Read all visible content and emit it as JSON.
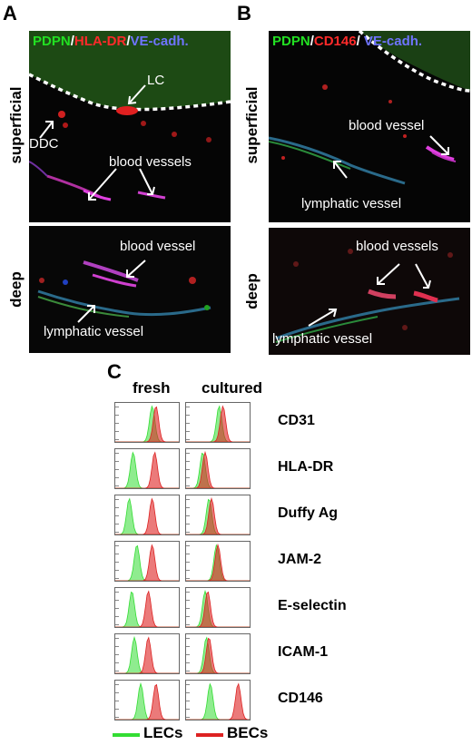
{
  "panels": {
    "A": {
      "letter": "A",
      "title": {
        "part1": "PDPN",
        "sep1": "/",
        "part2": "HLA-DR",
        "sep2": "/",
        "part3": "VE-cadh."
      },
      "superficial": {
        "label": "superficial",
        "lc": "LC",
        "ddc": "DDC",
        "blood_vessels": "blood vessels"
      },
      "deep": {
        "label": "deep",
        "blood_vessel": "blood vessel",
        "lymphatic_vessel": "lymphatic vessel"
      }
    },
    "B": {
      "letter": "B",
      "title": {
        "part1": "PDPN",
        "sep1": "/",
        "part2": "CD146",
        "sep2": "/ ",
        "part3": "VE-cadh."
      },
      "superficial": {
        "label": "superficial",
        "blood_vessel": "blood vessel",
        "lymphatic_vessel": "lymphatic vessel"
      },
      "deep": {
        "label": "deep",
        "blood_vessels": "blood vessels",
        "lymphatic_vessel": "lymphatic vessel"
      }
    },
    "C": {
      "letter": "C",
      "col_fresh": "fresh",
      "col_cultured": "cultured",
      "legend": {
        "lec": "LECs",
        "bec": "BECs",
        "lec_color": "#33dd33",
        "bec_color": "#dd2222"
      }
    }
  },
  "chart_data": {
    "type": "histogram-overlay",
    "series_names": [
      "LECs",
      "BECs"
    ],
    "conditions": [
      "fresh",
      "cultured"
    ],
    "markers": [
      "CD31",
      "HLA-DR",
      "Duffy Ag",
      "JAM-2",
      "E-selectin",
      "ICAM-1",
      "CD146"
    ],
    "peak_positions_fraction": {
      "fresh": {
        "CD31": {
          "LECs": 0.58,
          "BECs": 0.64
        },
        "HLA-DR": {
          "LECs": 0.28,
          "BECs": 0.62
        },
        "Duffy Ag": {
          "LECs": 0.22,
          "BECs": 0.58
        },
        "JAM-2": {
          "LECs": 0.34,
          "BECs": 0.58
        },
        "E-selectin": {
          "LECs": 0.26,
          "BECs": 0.52
        },
        "ICAM-1": {
          "LECs": 0.3,
          "BECs": 0.52
        },
        "CD146": {
          "LECs": 0.4,
          "BECs": 0.64
        }
      },
      "cultured": {
        "CD31": {
          "LECs": 0.52,
          "BECs": 0.58
        },
        "HLA-DR": {
          "LECs": 0.26,
          "BECs": 0.3
        },
        "Duffy Ag": {
          "LECs": 0.36,
          "BECs": 0.4
        },
        "JAM-2": {
          "LECs": 0.48,
          "BECs": 0.5
        },
        "E-selectin": {
          "LECs": 0.3,
          "BECs": 0.34
        },
        "ICAM-1": {
          "LECs": 0.32,
          "BECs": 0.36
        },
        "CD146": {
          "LECs": 0.38,
          "BECs": 0.82
        }
      }
    },
    "colors": {
      "LECs": "#33dd33",
      "BECs": "#dd2222"
    }
  }
}
